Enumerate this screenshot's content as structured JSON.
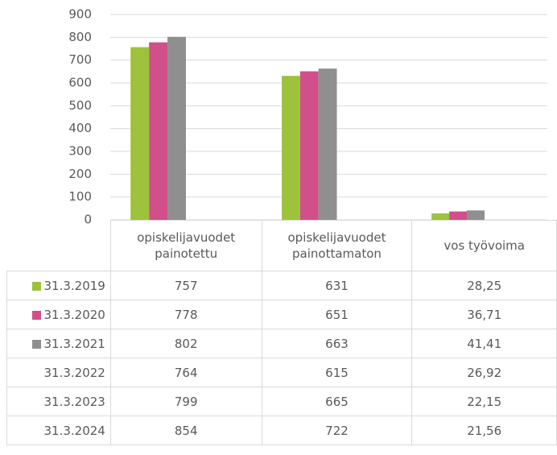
{
  "chart_data": {
    "type": "bar",
    "categories": [
      "opiskelijavuodet painotettu",
      "opiskelijavuodet painottamaton",
      "vos työvoima"
    ],
    "series": [
      {
        "name": "31.3.2019",
        "color": "#9dc23b",
        "values": [
          757,
          631,
          28.25
        ],
        "value_labels": [
          "757",
          "631",
          "28,25"
        ]
      },
      {
        "name": "31.3.2020",
        "color": "#d14f8a",
        "values": [
          778,
          651,
          36.71
        ],
        "value_labels": [
          "778",
          "651",
          "36,71"
        ]
      },
      {
        "name": "31.3.2021",
        "color": "#8f8f8f",
        "values": [
          802,
          663,
          41.41
        ],
        "value_labels": [
          "802",
          "663",
          "41,41"
        ]
      },
      {
        "name": "31.3.2022",
        "color": null,
        "values": [
          764,
          615,
          26.92
        ],
        "value_labels": [
          "764",
          "615",
          "26,92"
        ]
      },
      {
        "name": "31.3.2023",
        "color": null,
        "values": [
          799,
          665,
          22.15
        ],
        "value_labels": [
          "799",
          "665",
          "22,15"
        ]
      },
      {
        "name": "31.3.2024",
        "color": null,
        "values": [
          854,
          722,
          21.56
        ],
        "value_labels": [
          "854",
          "722",
          "21,56"
        ]
      }
    ],
    "ylim": [
      0,
      900
    ],
    "yticks": [
      0,
      100,
      200,
      300,
      400,
      500,
      600,
      700,
      800,
      900
    ],
    "grid": true
  }
}
